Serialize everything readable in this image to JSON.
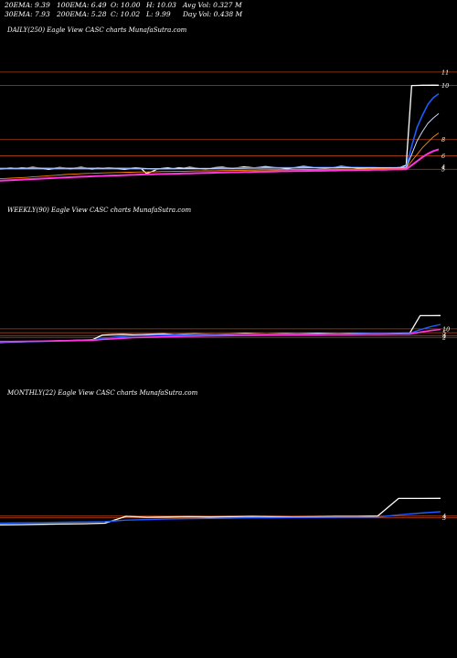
{
  "header": {
    "ema20": "20EMA: 9.39",
    "ema100": "100EMA: 6.49",
    "open": "O: 10.00",
    "high": "H: 10.03",
    "avg_vol": "Avg Vol: 0.327  M",
    "ema30": "30EMA: 7.93",
    "ema200": "200EMA: 5.28",
    "close": "C: 10.02",
    "low": "L: 9.99",
    "day_vol": "Day Vol: 0.438  M"
  },
  "panels": {
    "daily": {
      "title": "DAILY(250) Eagle   View  CASC charts MunafaSutra.com"
    },
    "weekly": {
      "title": "WEEKLY(90) Eagle   View  CASC charts MunafaSutra.com"
    },
    "monthly": {
      "title": "MONTHLY(22) Eagle   View  CASC charts MunafaSutra.com"
    }
  },
  "colors": {
    "background": "#000000",
    "price": "#ffffff",
    "ema_blue": "#1e5cff",
    "ema_light": "#c8d8ff",
    "ema_magenta": "#ff33dd",
    "ema_orange": "#ff8c00",
    "level_line": "#b04010"
  },
  "chart_data": [
    {
      "type": "line",
      "panel": "daily",
      "ylim": [
        2.8,
        11.6
      ],
      "y_tick_labels": [
        "11",
        "10",
        "8",
        "6",
        "5",
        "4"
      ],
      "levels": [
        11,
        10,
        6,
        4.8,
        3.8
      ],
      "series": [
        {
          "values": [
            3.82,
            3.86,
            3.9,
            3.85,
            3.92,
            3.88,
            3.95,
            3.9,
            3.86,
            3.8,
            3.87,
            3.93,
            3.89,
            3.84,
            3.9,
            3.95,
            3.88,
            3.83,
            3.9,
            3.86,
            3.92,
            3.88,
            3.84,
            3.8,
            3.86,
            3.92,
            3.88,
            3.5,
            3.62,
            3.8,
            3.86,
            3.9,
            3.85,
            3.92,
            3.88,
            3.95,
            3.9,
            3.86,
            3.82,
            3.88,
            3.93,
            3.96,
            3.9,
            3.86,
            3.92,
            3.98,
            3.94,
            3.9,
            3.95,
            4.0,
            3.96,
            3.92,
            3.88,
            3.84,
            3.9,
            3.96,
            4.02,
            3.98,
            3.94,
            3.9,
            3.88,
            3.92,
            3.96,
            4.02,
            3.98,
            3.94,
            3.9,
            3.86,
            3.92,
            3.88,
            3.82,
            3.86,
            3.92,
            3.9,
            3.95,
            4.1,
            10.0,
            10.01,
            10.02,
            10.02,
            10.03,
            10.02
          ]
        },
        {
          "values": [
            3.86,
            3.86,
            3.87,
            3.87,
            3.87,
            3.87,
            3.88,
            3.88,
            3.88,
            3.87,
            3.87,
            3.88,
            3.88,
            3.88,
            3.88,
            3.88,
            3.88,
            3.88,
            3.88,
            3.88,
            3.88,
            3.88,
            3.88,
            3.87,
            3.87,
            3.87,
            3.87,
            3.84,
            3.82,
            3.82,
            3.83,
            3.83,
            3.84,
            3.84,
            3.85,
            3.86,
            3.86,
            3.86,
            3.86,
            3.86,
            3.87,
            3.88,
            3.88,
            3.88,
            3.89,
            3.9,
            3.9,
            3.9,
            3.91,
            3.92,
            3.92,
            3.92,
            3.92,
            3.91,
            3.91,
            3.92,
            3.93,
            3.93,
            3.93,
            3.93,
            3.93,
            3.93,
            3.93,
            3.94,
            3.94,
            3.94,
            3.94,
            3.93,
            3.93,
            3.93,
            3.92,
            3.92,
            3.92,
            3.92,
            3.92,
            3.94,
            5.5,
            6.9,
            7.8,
            8.6,
            9.1,
            9.39
          ]
        },
        {
          "values": [
            3.87,
            3.87,
            3.87,
            3.87,
            3.87,
            3.87,
            3.87,
            3.87,
            3.87,
            3.87,
            3.87,
            3.87,
            3.87,
            3.87,
            3.87,
            3.87,
            3.87,
            3.87,
            3.87,
            3.87,
            3.87,
            3.87,
            3.87,
            3.87,
            3.87,
            3.87,
            3.87,
            3.85,
            3.84,
            3.84,
            3.84,
            3.84,
            3.84,
            3.85,
            3.85,
            3.85,
            3.85,
            3.85,
            3.85,
            3.85,
            3.86,
            3.86,
            3.86,
            3.86,
            3.87,
            3.87,
            3.88,
            3.88,
            3.88,
            3.89,
            3.89,
            3.89,
            3.89,
            3.89,
            3.89,
            3.9,
            3.9,
            3.91,
            3.91,
            3.91,
            3.91,
            3.91,
            3.91,
            3.92,
            3.92,
            3.92,
            3.92,
            3.92,
            3.92,
            3.92,
            3.92,
            3.92,
            3.92,
            3.92,
            3.92,
            3.93,
            4.9,
            5.9,
            6.6,
            7.2,
            7.6,
            7.93
          ]
        },
        {
          "values": [
            3.1,
            3.12,
            3.14,
            3.16,
            3.18,
            3.2,
            3.23,
            3.26,
            3.29,
            3.32,
            3.35,
            3.38,
            3.41,
            3.43,
            3.45,
            3.47,
            3.49,
            3.5,
            3.52,
            3.53,
            3.54,
            3.55,
            3.56,
            3.57,
            3.58,
            3.59,
            3.6,
            3.6,
            3.61,
            3.62,
            3.63,
            3.63,
            3.64,
            3.65,
            3.65,
            3.66,
            3.67,
            3.67,
            3.68,
            3.68,
            3.69,
            3.7,
            3.7,
            3.71,
            3.71,
            3.72,
            3.73,
            3.73,
            3.74,
            3.74,
            3.75,
            3.75,
            3.76,
            3.76,
            3.77,
            3.77,
            3.78,
            3.78,
            3.79,
            3.79,
            3.8,
            3.8,
            3.81,
            3.81,
            3.82,
            3.82,
            3.83,
            3.83,
            3.84,
            3.84,
            3.85,
            3.85,
            3.86,
            3.86,
            3.87,
            3.88,
            4.4,
            4.9,
            5.4,
            5.8,
            6.2,
            6.49
          ]
        },
        {
          "values": [
            2.95,
            2.97,
            2.99,
            3.01,
            3.03,
            3.05,
            3.07,
            3.09,
            3.11,
            3.13,
            3.15,
            3.17,
            3.19,
            3.21,
            3.23,
            3.25,
            3.26,
            3.28,
            3.3,
            3.31,
            3.33,
            3.34,
            3.35,
            3.37,
            3.38,
            3.39,
            3.41,
            3.42,
            3.43,
            3.44,
            3.45,
            3.46,
            3.47,
            3.48,
            3.49,
            3.5,
            3.51,
            3.52,
            3.53,
            3.54,
            3.55,
            3.56,
            3.57,
            3.58,
            3.58,
            3.59,
            3.6,
            3.61,
            3.62,
            3.62,
            3.63,
            3.64,
            3.65,
            3.65,
            3.66,
            3.67,
            3.67,
            3.68,
            3.69,
            3.69,
            3.7,
            3.71,
            3.71,
            3.72,
            3.73,
            3.73,
            3.74,
            3.75,
            3.75,
            3.76,
            3.77,
            3.77,
            3.78,
            3.79,
            3.79,
            3.8,
            4.1,
            4.4,
            4.7,
            4.95,
            5.15,
            5.28
          ]
        }
      ]
    },
    {
      "type": "line",
      "panel": "weekly",
      "ylim": [
        0.5,
        16
      ],
      "y_tick_labels": [
        "10",
        "5",
        "4",
        "2"
      ],
      "levels": [
        5.5,
        4.2,
        3.2,
        2.6
      ],
      "series": [
        {
          "values": [
            0.9,
            1.0,
            1.1,
            1.2,
            1.3,
            1.4,
            1.5,
            1.6,
            1.7,
            1.8,
            3.4,
            3.6,
            3.7,
            3.5,
            3.6,
            3.7,
            3.8,
            3.6,
            3.7,
            3.8,
            3.7,
            3.6,
            3.7,
            3.8,
            3.9,
            3.8,
            3.7,
            3.8,
            3.9,
            3.8,
            3.9,
            4.0,
            3.9,
            3.8,
            3.9,
            4.0,
            3.9,
            3.8,
            3.9,
            4.0,
            4.1,
            10.0,
            10.0,
            10.02
          ]
        },
        {
          "values": [
            1.0,
            1.05,
            1.1,
            1.15,
            1.2,
            1.3,
            1.4,
            1.5,
            1.6,
            1.7,
            2.2,
            2.6,
            2.9,
            3.1,
            3.2,
            3.3,
            3.4,
            3.5,
            3.5,
            3.6,
            3.6,
            3.6,
            3.6,
            3.7,
            3.7,
            3.7,
            3.7,
            3.7,
            3.8,
            3.8,
            3.8,
            3.8,
            3.8,
            3.8,
            3.8,
            3.9,
            3.9,
            3.9,
            3.9,
            3.9,
            4.0,
            5.2,
            6.2,
            7.0
          ]
        },
        {
          "values": [
            1.2,
            1.22,
            1.25,
            1.3,
            1.35,
            1.4,
            1.45,
            1.5,
            1.55,
            1.6,
            1.9,
            2.1,
            2.3,
            2.5,
            2.6,
            2.7,
            2.8,
            2.9,
            3.0,
            3.05,
            3.1,
            3.15,
            3.2,
            3.25,
            3.3,
            3.35,
            3.4,
            3.45,
            3.5,
            3.5,
            3.55,
            3.55,
            3.6,
            3.6,
            3.62,
            3.65,
            3.68,
            3.7,
            3.72,
            3.75,
            3.8,
            4.4,
            4.9,
            5.3
          ]
        }
      ]
    },
    {
      "type": "line",
      "panel": "monthly",
      "ylim": [
        0.5,
        16
      ],
      "y_tick_labels": [
        "4",
        "3"
      ],
      "levels": [
        4.0,
        3.4
      ],
      "series": [
        {
          "values": [
            1.0,
            1.1,
            1.2,
            1.3,
            1.4,
            1.6,
            3.9,
            3.6,
            3.7,
            3.8,
            3.7,
            3.8,
            3.9,
            3.8,
            3.7,
            3.8,
            3.9,
            3.9,
            4.0,
            10.0,
            10.0,
            10.02
          ]
        },
        {
          "values": [
            1.6,
            1.7,
            1.8,
            1.9,
            2.0,
            2.1,
            2.6,
            2.8,
            3.0,
            3.1,
            3.2,
            3.3,
            3.4,
            3.45,
            3.5,
            3.55,
            3.6,
            3.62,
            3.65,
            4.4,
            5.0,
            5.5
          ]
        }
      ]
    }
  ]
}
